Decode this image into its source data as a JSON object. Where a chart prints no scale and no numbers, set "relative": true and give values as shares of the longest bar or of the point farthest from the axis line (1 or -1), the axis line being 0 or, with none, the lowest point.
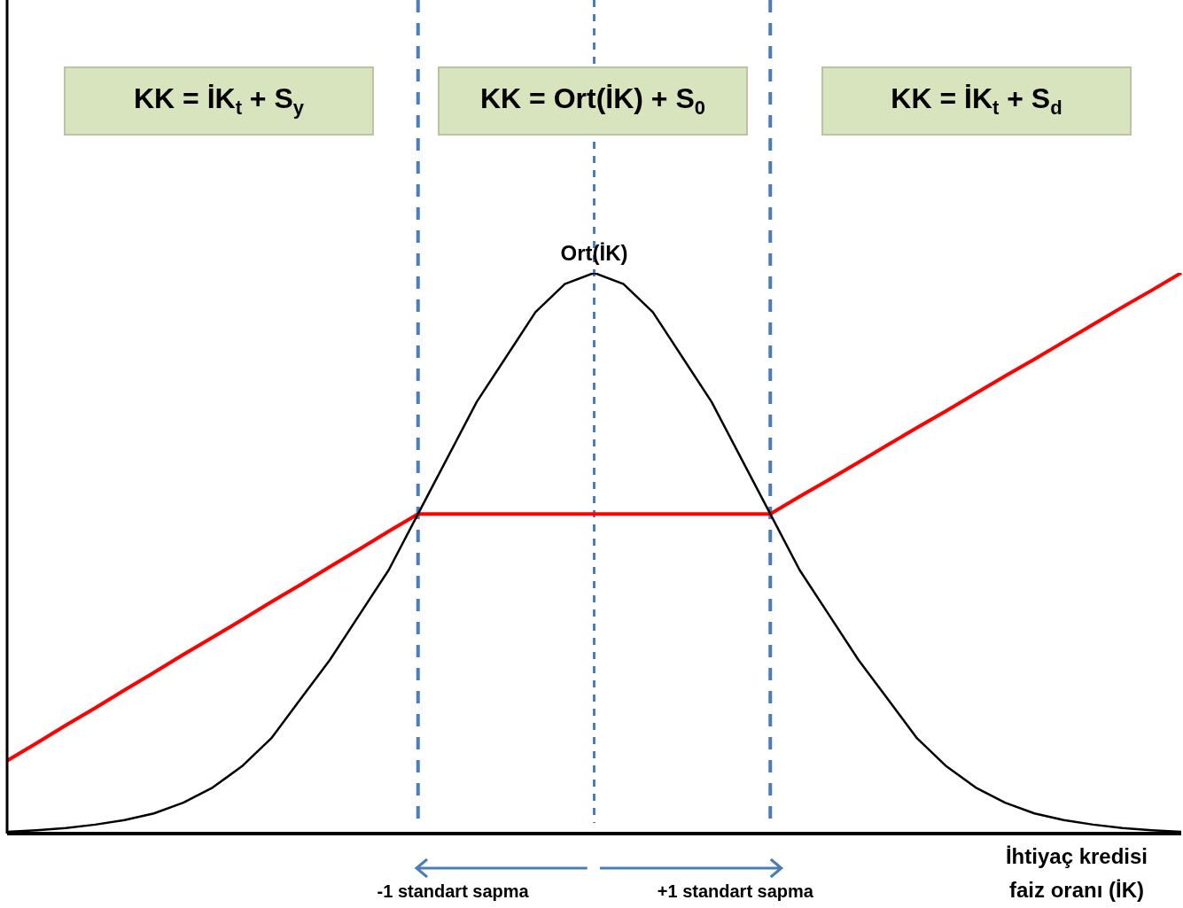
{
  "chart_data": {
    "type": "line",
    "relative": true,
    "xlabel": "İhtiyaç kredisi faiz oranı (İK)",
    "tick_labels": false,
    "legend": false,
    "marker": "none",
    "line_style": "solid",
    "categories": [
      null,
      null,
      null,
      null,
      null,
      null,
      null,
      null,
      null,
      null,
      null,
      null,
      null,
      null,
      null,
      null,
      null,
      null,
      null,
      null,
      null,
      null,
      null,
      null,
      null,
      null,
      null,
      null,
      null,
      null,
      null,
      null,
      null,
      null,
      null,
      null,
      null,
      null,
      null,
      null,
      null
    ],
    "series": [
      {
        "color": "#000000",
        "values": [
          0.003,
          0.006,
          0.01,
          0.016,
          0.024,
          0.036,
          0.055,
          0.082,
          0.12,
          0.17,
          0.24,
          0.31,
          0.39,
          0.47,
          0.57,
          0.67,
          0.77,
          0.85,
          0.93,
          0.98,
          1,
          0.98,
          0.93,
          0.85,
          0.77,
          0.67,
          0.57,
          0.47,
          0.39,
          0.31,
          0.24,
          0.17,
          0.12,
          0.082,
          0.055,
          0.036,
          0.024,
          0.016,
          0.01,
          0.006,
          0.003
        ]
      },
      {
        "color": "#ff0000",
        "values": [
          0.13,
          0.161,
          0.193,
          0.224,
          0.256,
          0.287,
          0.319,
          0.35,
          0.381,
          0.413,
          0.444,
          0.476,
          0.507,
          0.539,
          0.57,
          0.57,
          0.57,
          0.57,
          0.57,
          0.57,
          0.57,
          0.57,
          0.57,
          0.57,
          0.57,
          0.57,
          0.57,
          0.601,
          0.631,
          0.662,
          0.693,
          0.724,
          0.754,
          0.785,
          0.816,
          0.846,
          0.877,
          0.908,
          0.939,
          0.969,
          1
        ]
      }
    ],
    "annotations": [
      "KK = İK$_{t}$ + S$_{y}$",
      "KK = Ort(İK) + S$_{0}$",
      "KK = İK$_{t}$ + S$_{d}$",
      "Ort(İK)",
      "-1 standart sapma",
      "+1 standart sapma"
    ]
  }
}
